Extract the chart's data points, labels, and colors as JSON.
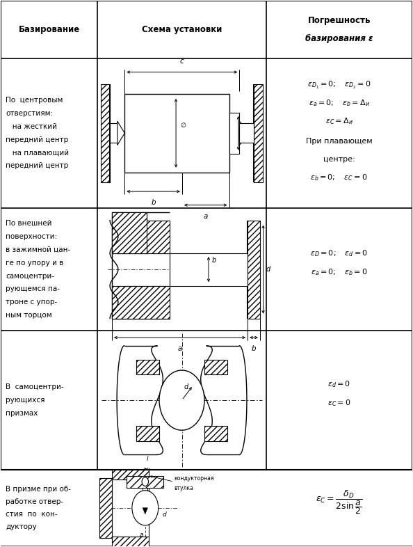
{
  "fig_width": 5.94,
  "fig_height": 7.86,
  "dpi": 100,
  "bg_color": "#ffffff",
  "col_boundaries": [
    0.0,
    0.235,
    0.645,
    1.0
  ],
  "row_boundaries": [
    1.0,
    0.895,
    0.62,
    0.395,
    0.14,
    0.0
  ],
  "header_col1": "Базирование",
  "header_col2": "Схема установки",
  "header_col3_1": "Погрешность",
  "header_col3_2": "базирования ε",
  "row1_text": [
    "По  центровым",
    "отверстиям:",
    "   на жесткий",
    "передний центр",
    "   на плавающий",
    "передний центр"
  ],
  "row2_text": [
    "По внешней",
    "поверхности:",
    "в зажимной цан-",
    "ге по упору и в",
    "самоцентри-",
    "рующемся па-",
    "троне с упор-",
    "ным торцом"
  ],
  "row3_text": [
    "В  самоцентри-",
    "рующихся",
    "призмах"
  ],
  "row4_text": [
    "В призме при об-",
    "работке отвер-",
    "стия  по  кон-",
    "дуктору"
  ]
}
